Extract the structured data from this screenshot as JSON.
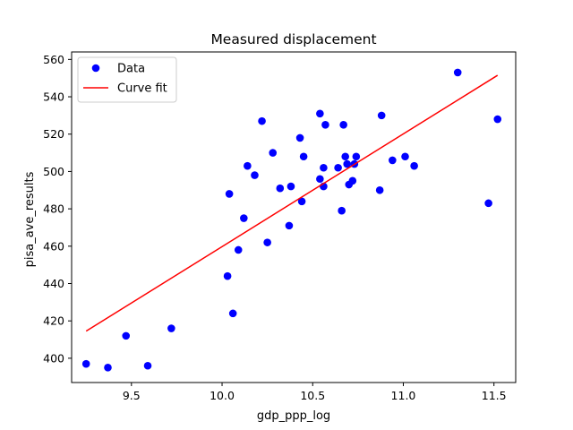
{
  "chart_data": {
    "type": "scatter",
    "title": "Measured displacement",
    "xlabel": "gdp_ppp_log",
    "ylabel": "pisa_ave_results",
    "xlim": [
      9.17,
      11.62
    ],
    "ylim": [
      387,
      564
    ],
    "xticks": [
      9.5,
      10.0,
      10.5,
      11.0,
      11.5
    ],
    "xtick_labels": [
      "9.5",
      "10.0",
      "10.5",
      "11.0",
      "11.5"
    ],
    "yticks": [
      400,
      420,
      440,
      460,
      480,
      500,
      520,
      540,
      560
    ],
    "ytick_labels": [
      "400",
      "420",
      "440",
      "460",
      "480",
      "500",
      "520",
      "540",
      "560"
    ],
    "grid": false,
    "legend_position": "top-left",
    "series": [
      {
        "name": "Data",
        "kind": "scatter",
        "color": "#0000ff",
        "points": [
          [
            9.25,
            397
          ],
          [
            9.37,
            395
          ],
          [
            9.47,
            412
          ],
          [
            9.59,
            396
          ],
          [
            9.72,
            416
          ],
          [
            10.03,
            444
          ],
          [
            10.04,
            488
          ],
          [
            10.06,
            424
          ],
          [
            10.09,
            458
          ],
          [
            10.12,
            475
          ],
          [
            10.14,
            503
          ],
          [
            10.18,
            498
          ],
          [
            10.22,
            527
          ],
          [
            10.25,
            462
          ],
          [
            10.28,
            510
          ],
          [
            10.32,
            491
          ],
          [
            10.37,
            471
          ],
          [
            10.38,
            492
          ],
          [
            10.43,
            518
          ],
          [
            10.44,
            484
          ],
          [
            10.45,
            508
          ],
          [
            10.54,
            531
          ],
          [
            10.54,
            496
          ],
          [
            10.56,
            492
          ],
          [
            10.56,
            502
          ],
          [
            10.57,
            525
          ],
          [
            10.64,
            502
          ],
          [
            10.66,
            479
          ],
          [
            10.67,
            525
          ],
          [
            10.68,
            508
          ],
          [
            10.69,
            504
          ],
          [
            10.7,
            493
          ],
          [
            10.72,
            495
          ],
          [
            10.73,
            504
          ],
          [
            10.74,
            508
          ],
          [
            10.87,
            490
          ],
          [
            10.88,
            530
          ],
          [
            10.94,
            506
          ],
          [
            11.01,
            508
          ],
          [
            11.06,
            503
          ],
          [
            11.3,
            553
          ],
          [
            11.47,
            483
          ],
          [
            11.52,
            528
          ]
        ]
      },
      {
        "name": "Curve fit",
        "kind": "line",
        "color": "#ff0000",
        "points": [
          [
            9.25,
            414.5
          ],
          [
            11.52,
            551.5
          ]
        ]
      }
    ]
  }
}
